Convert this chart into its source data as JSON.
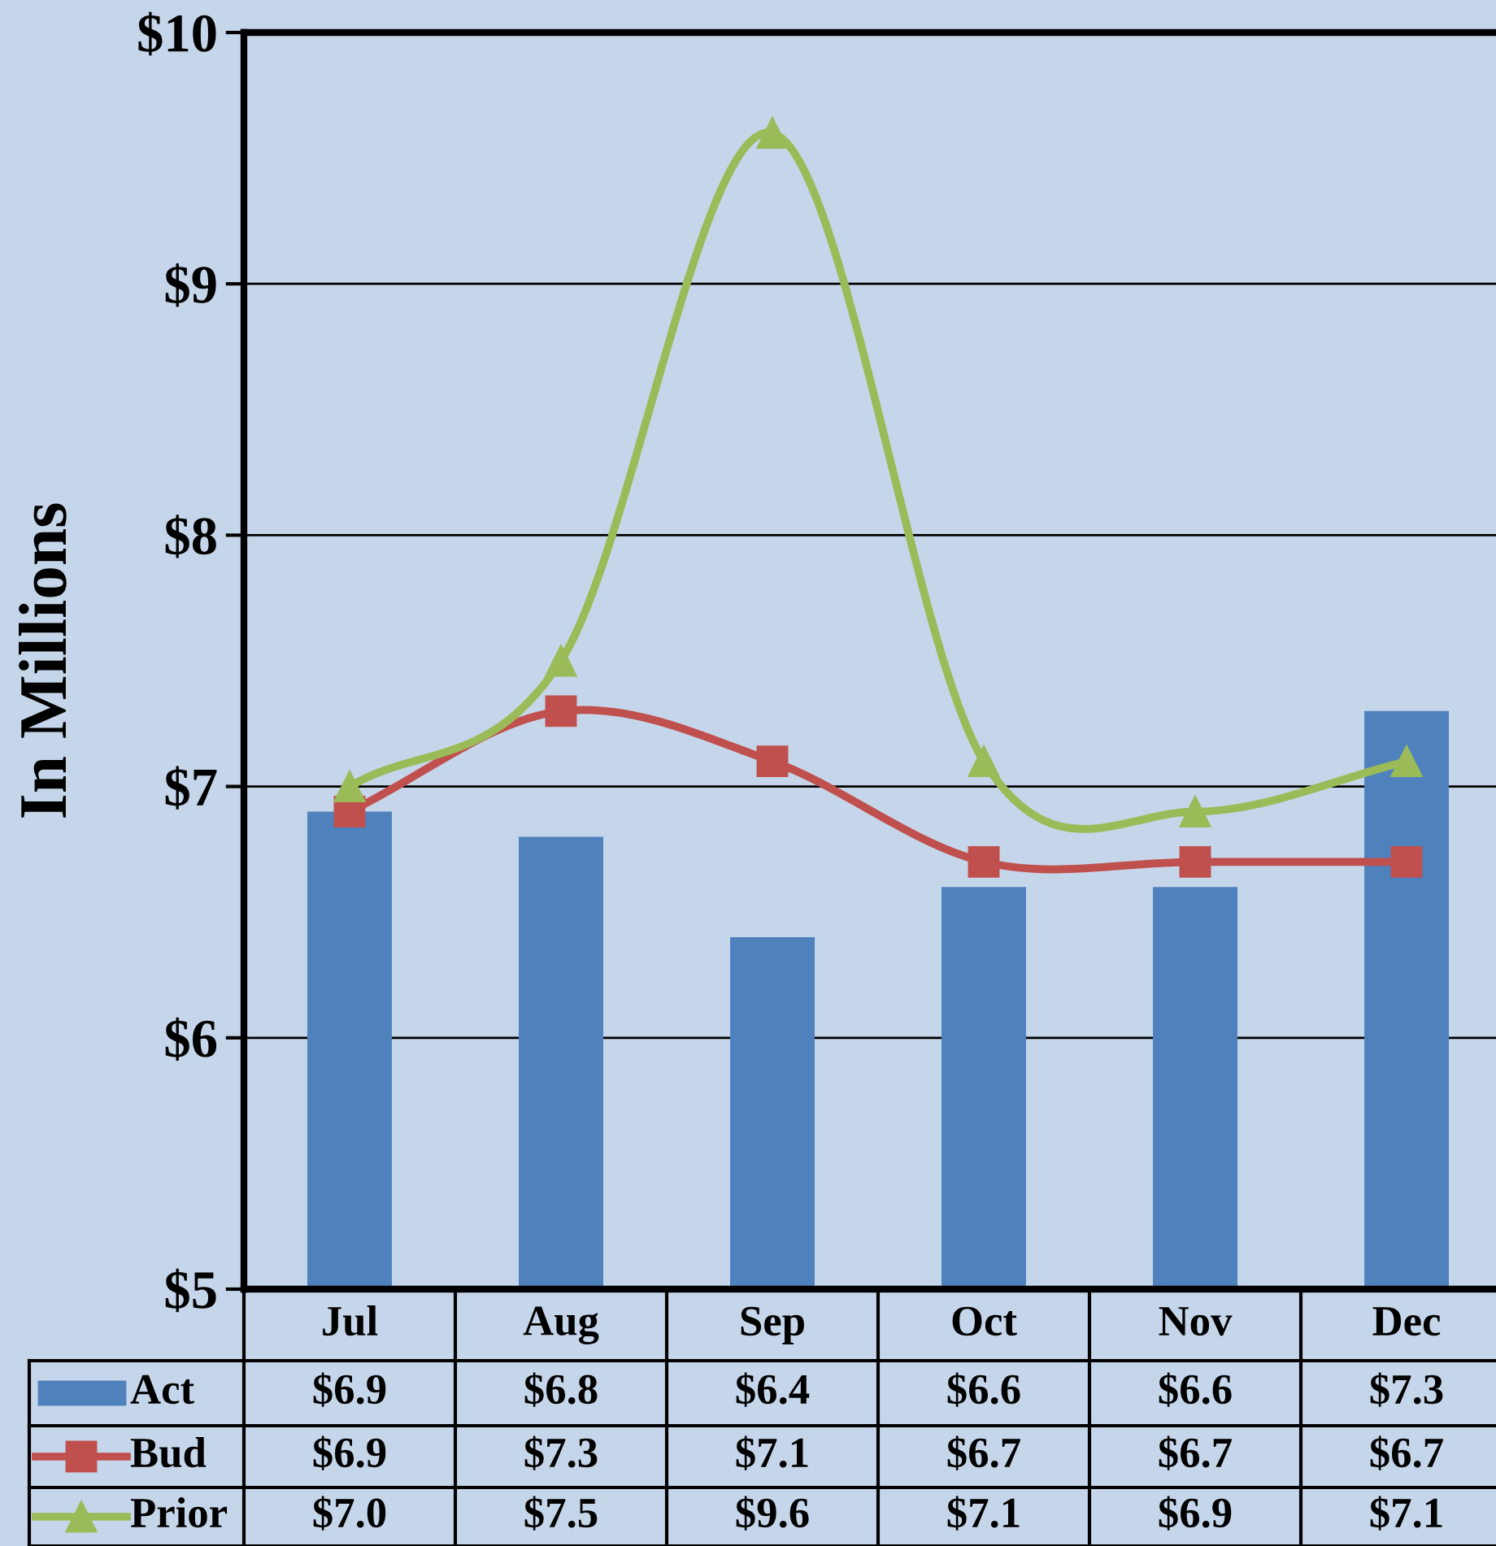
{
  "chart_data": {
    "type": "bar",
    "ylabel": "In Millions",
    "categories": [
      "Jul",
      "Aug",
      "Sep",
      "Oct",
      "Nov",
      "Dec"
    ],
    "series": [
      {
        "name": "Act",
        "color": "#4f81bd",
        "values": [
          6.9,
          6.8,
          6.4,
          6.6,
          6.6,
          7.3
        ],
        "value_labels": [
          "$6.9",
          "$6.8",
          "$6.4",
          "$6.6",
          "$6.6",
          "$7.3"
        ]
      },
      {
        "name": "Bud",
        "type": "line",
        "color": "#c0504d",
        "marker": "square",
        "values": [
          6.9,
          7.3,
          7.1,
          6.7,
          6.7,
          6.7
        ],
        "value_labels": [
          "$6.9",
          "$7.3",
          "$7.1",
          "$6.7",
          "$6.7",
          "$6.7"
        ]
      },
      {
        "name": "Prior",
        "type": "line",
        "color": "#9bbb59",
        "marker": "triangle",
        "values": [
          7.0,
          7.5,
          9.6,
          7.1,
          6.9,
          7.1
        ],
        "value_labels": [
          "$7.0",
          "$7.5",
          "$9.6",
          "$7.1",
          "$6.9",
          "$7.1"
        ]
      }
    ],
    "ylim": [
      5,
      10
    ],
    "yticks": [
      {
        "value": 5,
        "label": "$5"
      },
      {
        "value": 6,
        "label": "$6"
      },
      {
        "value": 7,
        "label": "$7"
      },
      {
        "value": 8,
        "label": "$8"
      },
      {
        "value": 9,
        "label": "$9"
      },
      {
        "value": 10,
        "label": "$10"
      }
    ],
    "grid": "y",
    "legend": "bottom left"
  }
}
